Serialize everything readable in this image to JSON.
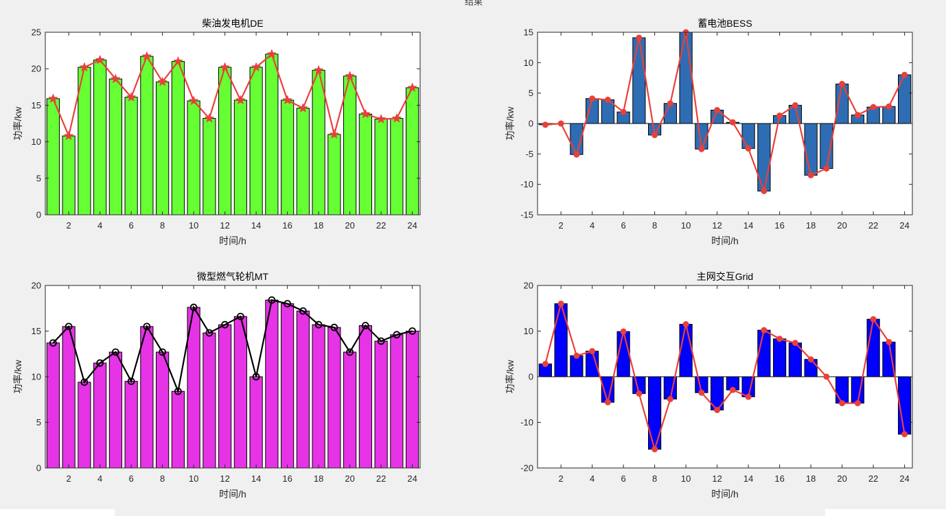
{
  "figure_title": "结果",
  "chart_data": [
    {
      "type": "bar",
      "title": "柴油发电机DE",
      "xlabel": "时间/h",
      "ylabel": "功率/kw",
      "xlim": [
        0.5,
        24.5
      ],
      "ylim": [
        0,
        25
      ],
      "xticks": [
        2,
        4,
        6,
        8,
        10,
        12,
        14,
        16,
        18,
        20,
        22,
        24
      ],
      "yticks": [
        0,
        5,
        10,
        15,
        20,
        25
      ],
      "bar_color": "#66ff33",
      "line_color": "#e8403a",
      "marker": "star",
      "x": [
        1,
        2,
        3,
        4,
        5,
        6,
        7,
        8,
        9,
        10,
        11,
        12,
        13,
        14,
        15,
        16,
        17,
        18,
        19,
        20,
        21,
        22,
        23,
        24
      ],
      "values": [
        15.9,
        10.8,
        20.2,
        21.2,
        18.6,
        16.1,
        21.7,
        18.2,
        21.0,
        15.6,
        13.2,
        20.2,
        15.7,
        20.2,
        22.0,
        15.7,
        14.6,
        19.8,
        11.0,
        19.0,
        13.8,
        13.1,
        13.2,
        17.4
      ]
    },
    {
      "type": "bar",
      "title": "蓄电池BESS",
      "xlabel": "时间/h",
      "ylabel": "功率/kw",
      "xlim": [
        0.5,
        24.5
      ],
      "ylim": [
        -15,
        15
      ],
      "xticks": [
        2,
        4,
        6,
        8,
        10,
        12,
        14,
        16,
        18,
        20,
        22,
        24
      ],
      "yticks": [
        -15,
        -10,
        -5,
        0,
        5,
        10,
        15
      ],
      "bar_color": "#2e6db4",
      "line_color": "#e8403a",
      "marker": "dot",
      "x": [
        1,
        2,
        3,
        4,
        5,
        6,
        7,
        8,
        9,
        10,
        11,
        12,
        13,
        14,
        15,
        16,
        17,
        18,
        19,
        20,
        21,
        22,
        23,
        24
      ],
      "values": [
        -0.2,
        0.0,
        -5.1,
        4.1,
        3.9,
        1.9,
        14.1,
        -1.9,
        3.3,
        15.0,
        -4.2,
        2.2,
        0.2,
        -4.1,
        -11.1,
        1.3,
        3.0,
        -8.5,
        -7.4,
        6.5,
        1.4,
        2.7,
        2.8,
        8.0
      ]
    },
    {
      "type": "bar",
      "title": "微型燃气轮机MT",
      "xlabel": "时间/h",
      "ylabel": "功率/kw",
      "xlim": [
        0.5,
        24.5
      ],
      "ylim": [
        0,
        20
      ],
      "xticks": [
        2,
        4,
        6,
        8,
        10,
        12,
        14,
        16,
        18,
        20,
        22,
        24
      ],
      "yticks": [
        0,
        5,
        10,
        15,
        20
      ],
      "bar_color": "#e633e6",
      "line_color": "#000000",
      "marker": "circle",
      "x": [
        1,
        2,
        3,
        4,
        5,
        6,
        7,
        8,
        9,
        10,
        11,
        12,
        13,
        14,
        15,
        16,
        17,
        18,
        19,
        20,
        21,
        22,
        23,
        24
      ],
      "values": [
        13.7,
        15.5,
        9.4,
        11.5,
        12.7,
        9.5,
        15.5,
        12.7,
        8.4,
        17.6,
        14.8,
        15.7,
        16.6,
        10.0,
        18.4,
        18.0,
        17.2,
        15.7,
        15.4,
        12.7,
        15.6,
        13.9,
        14.6,
        15.0
      ]
    },
    {
      "type": "bar",
      "title": "主网交互Grid",
      "xlabel": "时间/h",
      "ylabel": "功率/kw",
      "xlim": [
        0.5,
        24.5
      ],
      "ylim": [
        -20,
        20
      ],
      "xticks": [
        2,
        4,
        6,
        8,
        10,
        12,
        14,
        16,
        18,
        20,
        22,
        24
      ],
      "yticks": [
        -20,
        -10,
        0,
        10,
        20
      ],
      "bar_color": "#0000ff",
      "line_color": "#e8403a",
      "marker": "dot",
      "x": [
        1,
        2,
        3,
        4,
        5,
        6,
        7,
        8,
        9,
        10,
        11,
        12,
        13,
        14,
        15,
        16,
        17,
        18,
        19,
        20,
        21,
        22,
        23,
        24
      ],
      "values": [
        2.8,
        16.0,
        4.6,
        5.6,
        -5.6,
        9.9,
        -3.7,
        -15.9,
        -4.9,
        11.5,
        -3.5,
        -7.3,
        -2.9,
        -4.4,
        10.2,
        8.3,
        7.4,
        3.8,
        0.0,
        -5.8,
        -5.8,
        12.6,
        7.6,
        -12.6
      ]
    }
  ]
}
